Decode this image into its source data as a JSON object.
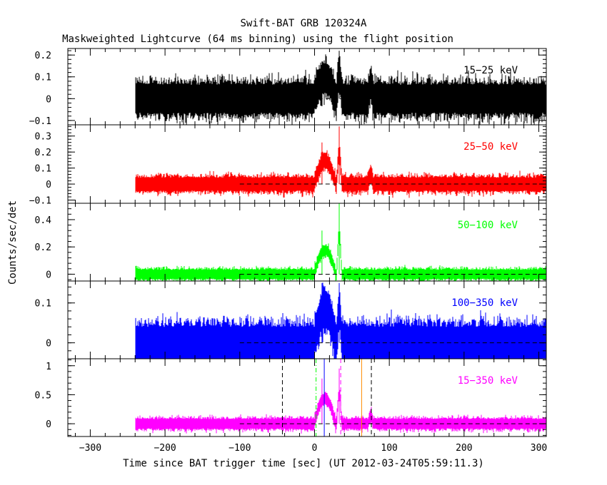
{
  "chart_data": {
    "type": "line",
    "title": "Swift-BAT GRB 120324A",
    "subtitle": "Maskweighted Lightcurve (64 ms binning) using the flight position",
    "xlabel": "Time since BAT trigger time [sec] (UT 2012-03-24T05:59:11.3)",
    "ylabel": "Counts/sec/det",
    "xlim": [
      -330,
      310
    ],
    "x_ticks": [
      -300,
      -200,
      -100,
      0,
      100,
      200,
      300
    ],
    "x_tick_labels": [
      "−300",
      "−200",
      "−100",
      "0",
      "100",
      "200",
      "300"
    ],
    "data_x_range": [
      -240,
      310
    ],
    "bin_size_sec": 0.064,
    "zero_dashed_line_x_range": [
      -100,
      310
    ],
    "panels": [
      {
        "name": "15-25 keV",
        "label": "15−25 keV",
        "color": "#000000",
        "ylim": [
          -0.12,
          0.23
        ],
        "y_ticks": [
          -0.1,
          0,
          0.1,
          0.2
        ],
        "y_tick_labels": [
          "−0.1",
          "0",
          "0.1",
          "0.2"
        ],
        "noise_sigma": 0.04,
        "features": [
          {
            "t_start": 0,
            "t_end": 28,
            "peak": 0.17
          },
          {
            "t_start": 30,
            "t_end": 36,
            "peak": 0.22
          },
          {
            "t_start": 72,
            "t_end": 78,
            "peak": 0.12
          }
        ]
      },
      {
        "name": "25-50 keV",
        "label": "25−50 keV",
        "color": "#ff0000",
        "ylim": [
          -0.12,
          0.37
        ],
        "y_ticks": [
          -0.1,
          0,
          0.1,
          0.2,
          0.3
        ],
        "y_tick_labels": [
          "−0.1",
          "0",
          "0.1",
          "0.2",
          "0.3"
        ],
        "noise_sigma": 0.025,
        "features": [
          {
            "t_start": 0,
            "t_end": 28,
            "peak": 0.26
          },
          {
            "t_start": 30,
            "t_end": 36,
            "peak": 0.36
          },
          {
            "t_start": 72,
            "t_end": 78,
            "peak": 0.12
          }
        ]
      },
      {
        "name": "50-100 keV",
        "label": "50−100 keV",
        "color": "#00ff00",
        "ylim": [
          -0.05,
          0.52
        ],
        "y_ticks": [
          0,
          0.2,
          0.4
        ],
        "y_tick_labels": [
          "0",
          "0.2",
          "0.4"
        ],
        "noise_sigma": 0.02,
        "features": [
          {
            "t_start": 0,
            "t_end": 28,
            "peak": 0.32
          },
          {
            "t_start": 30,
            "t_end": 36,
            "peak": 0.52
          }
        ]
      },
      {
        "name": "100-350 keV",
        "label": "100−350 keV",
        "color": "#0000ff",
        "ylim": [
          -0.04,
          0.155
        ],
        "y_ticks": [
          0,
          0.1
        ],
        "y_tick_labels": [
          "0",
          "0.1"
        ],
        "noise_sigma": 0.025,
        "features": [
          {
            "t_start": 0,
            "t_end": 28,
            "peak": 0.15
          },
          {
            "t_start": 30,
            "t_end": 36,
            "peak": 0.15
          }
        ]
      },
      {
        "name": "15-350 keV",
        "label": "15−350 keV",
        "color": "#ff00ff",
        "ylim": [
          -0.22,
          1.12
        ],
        "y_ticks": [
          0,
          0.5,
          1
        ],
        "y_tick_labels": [
          "0",
          "0.5",
          "1"
        ],
        "noise_sigma": 0.05,
        "features": [
          {
            "t_start": 0,
            "t_end": 28,
            "peak": 0.78
          },
          {
            "t_start": 30,
            "t_end": 36,
            "peak": 0.95
          },
          {
            "t_start": 72,
            "t_end": 78,
            "peak": 0.25
          }
        ],
        "vertical_lines": [
          {
            "x": -43,
            "color": "#000000",
            "style": "dashed"
          },
          {
            "x": 76,
            "color": "#000000",
            "style": "dashed"
          },
          {
            "x": 2,
            "color": "#00ff00",
            "style": "dashdot"
          },
          {
            "x": 13,
            "color": "#0000ff",
            "style": "solid"
          },
          {
            "x": 35,
            "color": "#ff00ff",
            "style": "dashed"
          },
          {
            "x": 63,
            "color": "#ff8c00",
            "style": "solid"
          }
        ]
      }
    ]
  }
}
